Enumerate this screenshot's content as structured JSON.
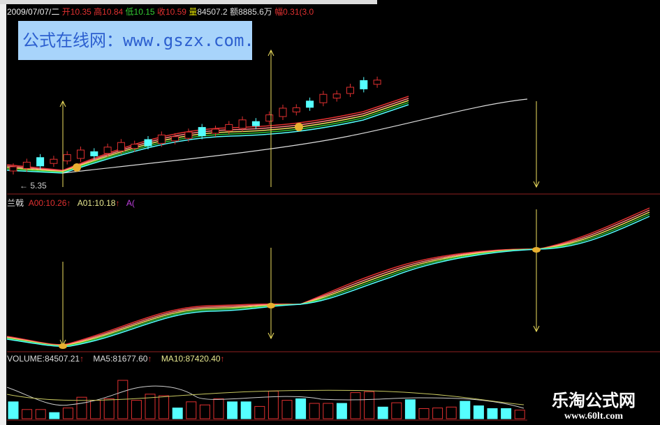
{
  "header": {
    "date": "2009/07/07/二",
    "open_label": "开",
    "open": "10.35",
    "high_label": "高",
    "high": "10.84",
    "low_label": "低",
    "low": "10.15",
    "close_label": "收",
    "close": "10.59",
    "volume_label": "量",
    "volume": "84507.2",
    "amount_label": "额",
    "amount": "8885.6万",
    "change_label": "幅",
    "change": "0.31(3.0"
  },
  "watermark": {
    "text": "公式在线网：www.gszx.com.cn"
  },
  "price_panel": {
    "low_marker": "← 5.35"
  },
  "indicator_panel": {
    "name": "兰戟",
    "a00": "A00:10.26",
    "a01": "A01:10.18",
    "a02": "A("
  },
  "volume_panel": {
    "volume": "VOLUME:84507.21",
    "ma5": "MA5:81677.60",
    "ma10": "MA10:87420.40"
  },
  "logo": {
    "name": "乐淘公式网",
    "url": "www.60lt.com"
  },
  "colors": {
    "up": "#e03030",
    "down": "#55ffff",
    "ma_white": "#dddddd",
    "arrow": "#f0e060",
    "bg": "#000000"
  },
  "chart_data": {
    "type": "candlestick",
    "volume_bars": [
      {
        "v": 55,
        "up": false
      },
      {
        "v": 30,
        "up": true
      },
      {
        "v": 30,
        "up": true
      },
      {
        "v": 20,
        "up": false
      },
      {
        "v": 35,
        "up": true
      },
      {
        "v": 70,
        "up": true
      },
      {
        "v": 60,
        "up": true
      },
      {
        "v": 65,
        "up": true
      },
      {
        "v": 125,
        "up": true
      },
      {
        "v": 60,
        "up": true
      },
      {
        "v": 80,
        "up": true
      },
      {
        "v": 75,
        "up": true
      },
      {
        "v": 35,
        "up": false
      },
      {
        "v": 55,
        "up": true
      },
      {
        "v": 45,
        "up": true
      },
      {
        "v": 65,
        "up": true
      },
      {
        "v": 55,
        "up": false
      },
      {
        "v": 55,
        "up": false
      },
      {
        "v": 40,
        "up": true
      },
      {
        "v": 90,
        "up": true
      },
      {
        "v": 60,
        "up": true
      },
      {
        "v": 65,
        "up": false
      },
      {
        "v": 50,
        "up": true
      },
      {
        "v": 50,
        "up": true
      },
      {
        "v": 50,
        "up": false
      },
      {
        "v": 85,
        "up": true
      },
      {
        "v": 88,
        "up": true
      },
      {
        "v": 38,
        "up": false
      },
      {
        "v": 52,
        "up": true
      },
      {
        "v": 62,
        "up": false
      },
      {
        "v": 33,
        "up": true
      },
      {
        "v": 35,
        "up": true
      },
      {
        "v": 38,
        "up": true
      },
      {
        "v": 57,
        "up": false
      },
      {
        "v": 42,
        "up": false
      },
      {
        "v": 33,
        "up": false
      },
      {
        "v": 33,
        "up": false
      },
      {
        "v": 28,
        "up": true
      }
    ]
  }
}
